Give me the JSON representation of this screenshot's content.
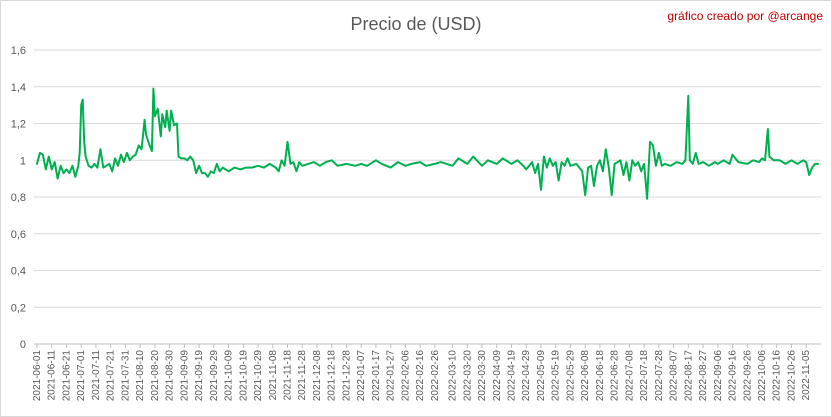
{
  "chart_data": {
    "type": "line",
    "title": "Precio de (USD)",
    "annotation": "gráfico creado por @arcange",
    "xlabel": "",
    "ylabel": "",
    "ylim": [
      0,
      1.6
    ],
    "grid": true,
    "color": "#00b050",
    "y_ticks": [
      "0",
      "0,2",
      "0,4",
      "0,6",
      "0,8",
      "1",
      "1,2",
      "1,4",
      "1,6"
    ],
    "x_tick_labels": [
      "2021-06-01",
      "2021-06-11",
      "2021-06-21",
      "2021-07-01",
      "2021-07-11",
      "2021-07-21",
      "2021-07-31",
      "2021-08-10",
      "2021-08-20",
      "2021-08-30",
      "2021-09-09",
      "2021-09-19",
      "2021-09-29",
      "2021-10-09",
      "2021-10-19",
      "2021-10-29",
      "2021-11-08",
      "2021-11-18",
      "2021-11-28",
      "2021-12-08",
      "2021-12-18",
      "2021-12-28",
      "2022-01-07",
      "2022-01-17",
      "2022-01-27",
      "2022-02-06",
      "2022-02-16",
      "2022-02-26",
      "2022-03-10",
      "2022-03-20",
      "2022-03-30",
      "2022-04-09",
      "2022-04-19",
      "2022-04-29",
      "2022-05-09",
      "2022-05-19",
      "2022-05-29",
      "2022-06-08",
      "2022-06-18",
      "2022-06-28",
      "2022-07-08",
      "2022-07-18",
      "2022-07-28",
      "2022-08-07",
      "2022-08-17",
      "2022-08-27",
      "2022-09-06",
      "2022-09-16",
      "2022-09-26",
      "2022-10-06",
      "2022-10-16",
      "2022-10-26",
      "2022-11-05"
    ],
    "series": [
      {
        "points": [
          [
            "2021-06-01",
            0.98
          ],
          [
            "2021-06-03",
            1.04
          ],
          [
            "2021-06-05",
            1.03
          ],
          [
            "2021-06-07",
            0.95
          ],
          [
            "2021-06-09",
            1.02
          ],
          [
            "2021-06-11",
            0.95
          ],
          [
            "2021-06-13",
            0.99
          ],
          [
            "2021-06-15",
            0.9
          ],
          [
            "2021-06-17",
            0.97
          ],
          [
            "2021-06-19",
            0.93
          ],
          [
            "2021-06-21",
            0.95
          ],
          [
            "2021-06-23",
            0.93
          ],
          [
            "2021-06-25",
            0.97
          ],
          [
            "2021-06-27",
            0.91
          ],
          [
            "2021-06-29",
            0.97
          ],
          [
            "2021-06-30",
            1.04
          ],
          [
            "2021-07-01",
            1.3
          ],
          [
            "2021-07-02",
            1.33
          ],
          [
            "2021-07-03",
            1.1
          ],
          [
            "2021-07-04",
            1.02
          ],
          [
            "2021-07-06",
            0.97
          ],
          [
            "2021-07-08",
            0.96
          ],
          [
            "2021-07-10",
            0.98
          ],
          [
            "2021-07-12",
            0.96
          ],
          [
            "2021-07-14",
            1.06
          ],
          [
            "2021-07-16",
            0.96
          ],
          [
            "2021-07-18",
            0.97
          ],
          [
            "2021-07-20",
            0.98
          ],
          [
            "2021-07-22",
            0.94
          ],
          [
            "2021-07-24",
            1.01
          ],
          [
            "2021-07-26",
            0.97
          ],
          [
            "2021-07-28",
            1.03
          ],
          [
            "2021-07-30",
            0.99
          ],
          [
            "2021-08-01",
            1.04
          ],
          [
            "2021-08-03",
            1.0
          ],
          [
            "2021-08-05",
            1.02
          ],
          [
            "2021-08-07",
            1.03
          ],
          [
            "2021-08-09",
            1.08
          ],
          [
            "2021-08-11",
            1.06
          ],
          [
            "2021-08-13",
            1.22
          ],
          [
            "2021-08-14",
            1.14
          ],
          [
            "2021-08-16",
            1.09
          ],
          [
            "2021-08-18",
            1.05
          ],
          [
            "2021-08-19",
            1.39
          ],
          [
            "2021-08-20",
            1.24
          ],
          [
            "2021-08-22",
            1.28
          ],
          [
            "2021-08-24",
            1.13
          ],
          [
            "2021-08-25",
            1.25
          ],
          [
            "2021-08-27",
            1.18
          ],
          [
            "2021-08-28",
            1.27
          ],
          [
            "2021-08-30",
            1.16
          ],
          [
            "2021-08-31",
            1.27
          ],
          [
            "2021-09-02",
            1.19
          ],
          [
            "2021-09-04",
            1.2
          ],
          [
            "2021-09-05",
            1.02
          ],
          [
            "2021-09-07",
            1.01
          ],
          [
            "2021-09-09",
            1.01
          ],
          [
            "2021-09-11",
            1.0
          ],
          [
            "2021-09-13",
            1.02
          ],
          [
            "2021-09-15",
            1.0
          ],
          [
            "2021-09-17",
            0.93
          ],
          [
            "2021-09-19",
            0.97
          ],
          [
            "2021-09-21",
            0.93
          ],
          [
            "2021-09-23",
            0.93
          ],
          [
            "2021-09-25",
            0.91
          ],
          [
            "2021-09-27",
            0.94
          ],
          [
            "2021-09-29",
            0.93
          ],
          [
            "2021-10-01",
            0.98
          ],
          [
            "2021-10-03",
            0.94
          ],
          [
            "2021-10-05",
            0.96
          ],
          [
            "2021-10-09",
            0.94
          ],
          [
            "2021-10-13",
            0.96
          ],
          [
            "2021-10-17",
            0.95
          ],
          [
            "2021-10-21",
            0.96
          ],
          [
            "2021-10-25",
            0.96
          ],
          [
            "2021-10-29",
            0.97
          ],
          [
            "2021-11-02",
            0.96
          ],
          [
            "2021-11-06",
            0.98
          ],
          [
            "2021-11-10",
            0.96
          ],
          [
            "2021-11-12",
            0.94
          ],
          [
            "2021-11-14",
            1.0
          ],
          [
            "2021-11-16",
            0.97
          ],
          [
            "2021-11-18",
            1.1
          ],
          [
            "2021-11-20",
            0.98
          ],
          [
            "2021-11-22",
            0.99
          ],
          [
            "2021-11-24",
            0.94
          ],
          [
            "2021-11-26",
            0.99
          ],
          [
            "2021-11-28",
            0.97
          ],
          [
            "2021-12-02",
            0.98
          ],
          [
            "2021-12-06",
            0.99
          ],
          [
            "2021-12-10",
            0.97
          ],
          [
            "2021-12-14",
            0.99
          ],
          [
            "2021-12-18",
            1.0
          ],
          [
            "2021-12-22",
            0.97
          ],
          [
            "2021-12-28",
            0.98
          ],
          [
            "2022-01-03",
            0.97
          ],
          [
            "2022-01-07",
            0.98
          ],
          [
            "2022-01-11",
            0.97
          ],
          [
            "2022-01-17",
            1.0
          ],
          [
            "2022-01-21",
            0.98
          ],
          [
            "2022-01-27",
            0.96
          ],
          [
            "2022-02-01",
            0.99
          ],
          [
            "2022-02-06",
            0.97
          ],
          [
            "2022-02-10",
            0.98
          ],
          [
            "2022-02-16",
            0.99
          ],
          [
            "2022-02-20",
            0.97
          ],
          [
            "2022-02-26",
            0.98
          ],
          [
            "2022-03-02",
            0.99
          ],
          [
            "2022-03-10",
            0.97
          ],
          [
            "2022-03-14",
            1.01
          ],
          [
            "2022-03-20",
            0.98
          ],
          [
            "2022-03-24",
            1.02
          ],
          [
            "2022-03-30",
            0.97
          ],
          [
            "2022-04-03",
            1.0
          ],
          [
            "2022-04-09",
            0.98
          ],
          [
            "2022-04-13",
            1.01
          ],
          [
            "2022-04-19",
            0.98
          ],
          [
            "2022-04-23",
            1.0
          ],
          [
            "2022-04-27",
            0.97
          ],
          [
            "2022-04-29",
            0.95
          ],
          [
            "2022-05-03",
            0.99
          ],
          [
            "2022-05-05",
            0.93
          ],
          [
            "2022-05-07",
            0.98
          ],
          [
            "2022-05-09",
            0.84
          ],
          [
            "2022-05-11",
            1.02
          ],
          [
            "2022-05-13",
            0.96
          ],
          [
            "2022-05-15",
            1.01
          ],
          [
            "2022-05-17",
            0.97
          ],
          [
            "2022-05-19",
            0.99
          ],
          [
            "2022-05-21",
            0.89
          ],
          [
            "2022-05-23",
            0.99
          ],
          [
            "2022-05-25",
            0.97
          ],
          [
            "2022-05-27",
            1.01
          ],
          [
            "2022-05-29",
            0.97
          ],
          [
            "2022-06-02",
            0.98
          ],
          [
            "2022-06-06",
            0.94
          ],
          [
            "2022-06-08",
            0.81
          ],
          [
            "2022-06-10",
            0.96
          ],
          [
            "2022-06-12",
            0.97
          ],
          [
            "2022-06-14",
            0.86
          ],
          [
            "2022-06-16",
            0.97
          ],
          [
            "2022-06-18",
            1.0
          ],
          [
            "2022-06-20",
            0.94
          ],
          [
            "2022-06-22",
            1.06
          ],
          [
            "2022-06-24",
            0.96
          ],
          [
            "2022-06-26",
            0.81
          ],
          [
            "2022-06-28",
            0.98
          ],
          [
            "2022-07-02",
            1.0
          ],
          [
            "2022-07-04",
            0.92
          ],
          [
            "2022-07-06",
            0.99
          ],
          [
            "2022-07-08",
            0.89
          ],
          [
            "2022-07-10",
            1.0
          ],
          [
            "2022-07-12",
            0.97
          ],
          [
            "2022-07-14",
            0.99
          ],
          [
            "2022-07-16",
            0.94
          ],
          [
            "2022-07-18",
            0.98
          ],
          [
            "2022-07-20",
            0.79
          ],
          [
            "2022-07-22",
            1.1
          ],
          [
            "2022-07-24",
            1.08
          ],
          [
            "2022-07-26",
            0.97
          ],
          [
            "2022-07-28",
            1.04
          ],
          [
            "2022-07-30",
            0.97
          ],
          [
            "2022-08-01",
            0.98
          ],
          [
            "2022-08-05",
            0.97
          ],
          [
            "2022-08-09",
            0.99
          ],
          [
            "2022-08-13",
            0.98
          ],
          [
            "2022-08-15",
            1.0
          ],
          [
            "2022-08-17",
            1.35
          ],
          [
            "2022-08-18",
            1.0
          ],
          [
            "2022-08-20",
            0.98
          ],
          [
            "2022-08-22",
            1.04
          ],
          [
            "2022-08-24",
            0.98
          ],
          [
            "2022-08-27",
            0.99
          ],
          [
            "2022-08-31",
            0.97
          ],
          [
            "2022-09-04",
            0.99
          ],
          [
            "2022-09-06",
            0.98
          ],
          [
            "2022-09-10",
            1.0
          ],
          [
            "2022-09-14",
            0.98
          ],
          [
            "2022-09-16",
            1.03
          ],
          [
            "2022-09-20",
            0.99
          ],
          [
            "2022-09-26",
            0.98
          ],
          [
            "2022-09-30",
            1.0
          ],
          [
            "2022-10-04",
            0.99
          ],
          [
            "2022-10-06",
            1.01
          ],
          [
            "2022-10-08",
            1.0
          ],
          [
            "2022-10-10",
            1.17
          ],
          [
            "2022-10-11",
            1.02
          ],
          [
            "2022-10-14",
            1.0
          ],
          [
            "2022-10-18",
            1.0
          ],
          [
            "2022-10-22",
            0.98
          ],
          [
            "2022-10-26",
            1.0
          ],
          [
            "2022-10-30",
            0.98
          ],
          [
            "2022-11-03",
            1.0
          ],
          [
            "2022-11-05",
            0.99
          ],
          [
            "2022-11-07",
            0.92
          ],
          [
            "2022-11-09",
            0.96
          ],
          [
            "2022-11-11",
            0.98
          ],
          [
            "2022-11-13",
            0.98
          ]
        ]
      }
    ]
  }
}
